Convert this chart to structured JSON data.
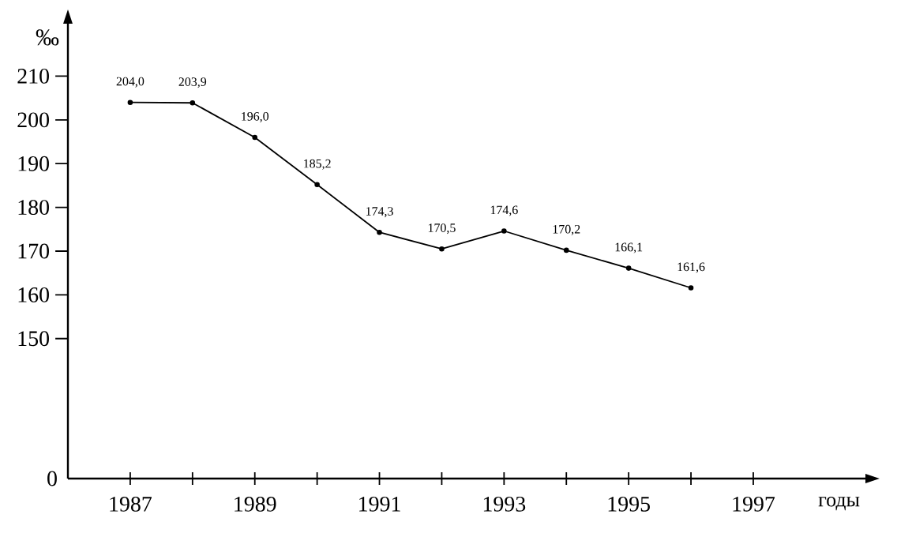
{
  "chart_data": {
    "type": "line",
    "xlabel": "годы",
    "ylabel": "‰",
    "x": [
      1987,
      1988,
      1989,
      1990,
      1991,
      1992,
      1993,
      1994,
      1995,
      1996
    ],
    "values": [
      204.0,
      203.9,
      196.0,
      185.2,
      174.3,
      170.5,
      174.6,
      170.2,
      166.1,
      161.6
    ],
    "value_labels": [
      "204,0",
      "203,9",
      "196,0",
      "185,2",
      "174,3",
      "170,5",
      "174,6",
      "170,2",
      "166,1",
      "161,6"
    ],
    "color": "#000000",
    "marker": "circle",
    "line_style": "solid",
    "grid": false,
    "xlim": [
      1986,
      1998.8
    ],
    "ylim": [
      118,
      222
    ],
    "xticks": [
      1987,
      {
        "value": 1988,
        "label": null
      },
      1989,
      {
        "value": 1990,
        "label": null
      },
      1991,
      {
        "value": 1992,
        "label": null
      },
      1993,
      {
        "value": 1994,
        "label": null
      },
      1995,
      {
        "value": 1996,
        "label": null
      },
      1997
    ],
    "yticks": [
      150,
      160,
      170,
      180,
      190,
      200,
      210
    ],
    "annotations": [
      "0"
    ]
  }
}
